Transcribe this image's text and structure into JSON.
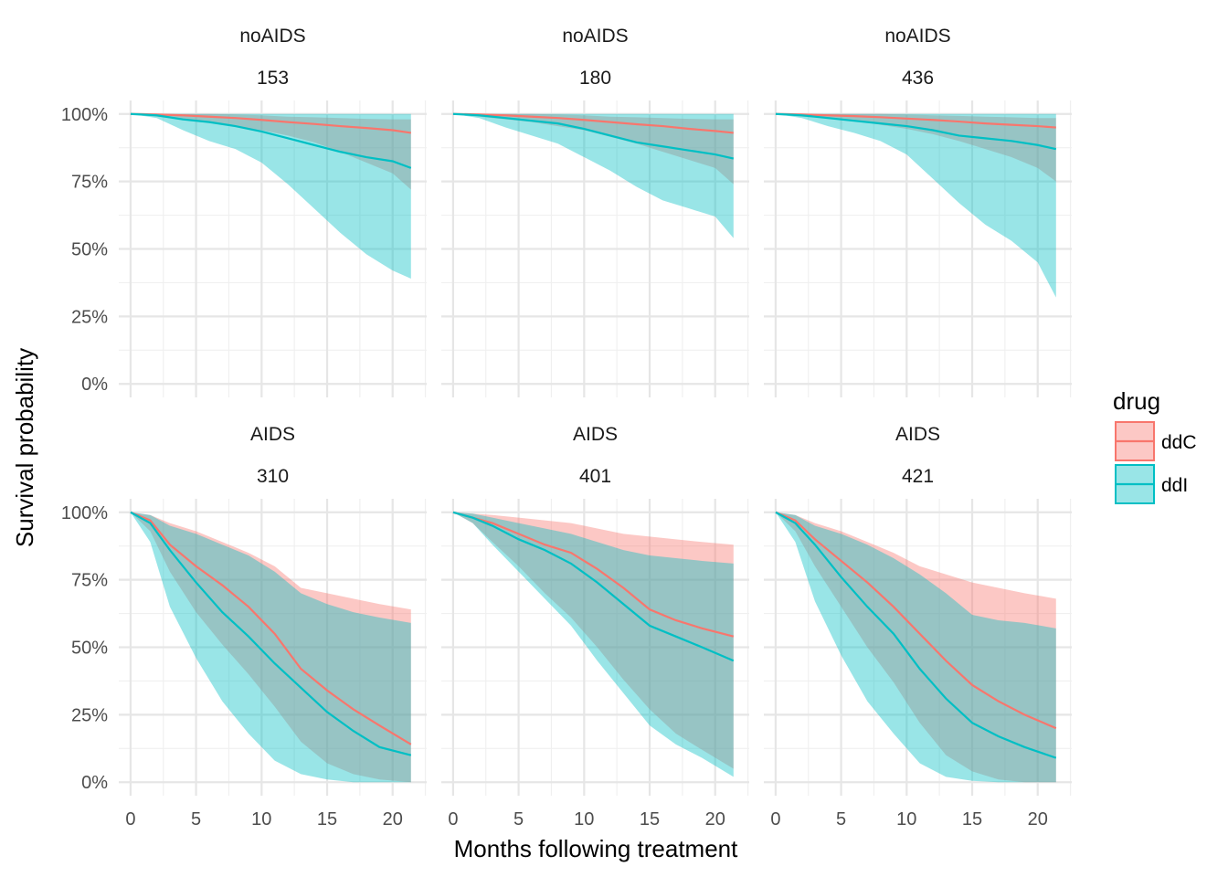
{
  "chart_data": {
    "type": "area",
    "xlabel": "Months following treatment",
    "ylabel": "Survival probability",
    "xlim": [
      -0.9,
      22.6
    ],
    "ylim": [
      -0.05,
      1.05
    ],
    "x_ticks": [
      0,
      5,
      10,
      15,
      20
    ],
    "x_tick_labels": [
      "0",
      "5",
      "10",
      "15",
      "20"
    ],
    "y_ticks": [
      0,
      0.25,
      0.5,
      0.75,
      1
    ],
    "y_tick_labels": [
      "0%",
      "25%",
      "50%",
      "75%",
      "100%"
    ],
    "grid": true,
    "legend": {
      "title": "drug",
      "placement": "right",
      "items": [
        {
          "label": "ddC",
          "line_color": "#F8766D",
          "fill_color": "#F8766D"
        },
        {
          "label": "ddI",
          "line_color": "#00BFC4",
          "fill_color": "#00BFC4"
        }
      ]
    },
    "colors": {
      "ddC": "#F8766D",
      "ddI": "#00BFC4"
    },
    "panels": [
      {
        "strip_top": "noAIDS",
        "strip_bottom": "153",
        "x": [
          0,
          2,
          4,
          6,
          8,
          10,
          12,
          14,
          16,
          18,
          20,
          21.4
        ],
        "series": [
          {
            "name": "ddC",
            "estimate": [
              1,
              0.998,
              0.995,
              0.99,
              0.985,
              0.978,
              0.97,
              0.963,
              0.955,
              0.948,
              0.94,
              0.93
            ],
            "lower": [
              1,
              0.99,
              0.98,
              0.97,
              0.955,
              0.94,
              0.92,
              0.895,
              0.86,
              0.82,
              0.78,
              0.72
            ],
            "upper": [
              1,
              1,
              1,
              1,
              0.998,
              0.995,
              0.99,
              0.988,
              0.985,
              0.982,
              0.98,
              0.98
            ]
          },
          {
            "name": "ddI",
            "estimate": [
              1,
              0.995,
              0.98,
              0.97,
              0.955,
              0.935,
              0.91,
              0.885,
              0.86,
              0.84,
              0.825,
              0.8
            ],
            "lower": [
              1,
              0.985,
              0.94,
              0.9,
              0.87,
              0.82,
              0.74,
              0.65,
              0.56,
              0.48,
              0.42,
              0.39
            ],
            "upper": [
              1,
              1,
              1,
              1,
              1,
              1,
              1,
              1,
              1,
              1,
              1,
              1
            ]
          }
        ]
      },
      {
        "strip_top": "noAIDS",
        "strip_bottom": "180",
        "x": [
          0,
          2,
          4,
          6,
          8,
          10,
          12,
          14,
          16,
          18,
          20,
          21.4
        ],
        "series": [
          {
            "name": "ddC",
            "estimate": [
              1,
              0.998,
              0.995,
              0.99,
              0.985,
              0.978,
              0.97,
              0.962,
              0.955,
              0.945,
              0.937,
              0.93
            ],
            "lower": [
              1,
              0.99,
              0.98,
              0.97,
              0.955,
              0.94,
              0.915,
              0.89,
              0.86,
              0.83,
              0.8,
              0.74
            ],
            "upper": [
              1,
              1,
              1,
              1,
              0.998,
              0.995,
              0.99,
              0.988,
              0.985,
              0.982,
              0.98,
              0.98
            ]
          },
          {
            "name": "ddI",
            "estimate": [
              1,
              0.995,
              0.985,
              0.975,
              0.965,
              0.945,
              0.92,
              0.895,
              0.88,
              0.865,
              0.85,
              0.835
            ],
            "lower": [
              1,
              0.985,
              0.95,
              0.92,
              0.89,
              0.84,
              0.79,
              0.73,
              0.68,
              0.65,
              0.62,
              0.54
            ],
            "upper": [
              1,
              1,
              1,
              1,
              1,
              1,
              1,
              1,
              1,
              1,
              1,
              1
            ]
          }
        ]
      },
      {
        "strip_top": "noAIDS",
        "strip_bottom": "436",
        "x": [
          0,
          2,
          4,
          6,
          8,
          10,
          12,
          14,
          16,
          18,
          20,
          21.4
        ],
        "series": [
          {
            "name": "ddC",
            "estimate": [
              1,
              0.998,
              0.995,
              0.992,
              0.988,
              0.983,
              0.978,
              0.972,
              0.965,
              0.96,
              0.955,
              0.95
            ],
            "lower": [
              1,
              0.99,
              0.985,
              0.975,
              0.96,
              0.945,
              0.925,
              0.9,
              0.87,
              0.84,
              0.8,
              0.75
            ],
            "upper": [
              1,
              1,
              1,
              1,
              1,
              0.998,
              0.995,
              0.993,
              0.99,
              0.988,
              0.985,
              0.985
            ]
          },
          {
            "name": "ddI",
            "estimate": [
              1,
              0.995,
              0.985,
              0.975,
              0.965,
              0.955,
              0.94,
              0.92,
              0.91,
              0.9,
              0.885,
              0.87
            ],
            "lower": [
              1,
              0.985,
              0.955,
              0.93,
              0.9,
              0.85,
              0.76,
              0.67,
              0.59,
              0.53,
              0.45,
              0.32
            ],
            "upper": [
              1,
              1,
              1,
              1,
              1,
              1,
              1,
              1,
              1,
              1,
              1,
              1
            ]
          }
        ]
      },
      {
        "strip_top": "AIDS",
        "strip_bottom": "310",
        "x": [
          0,
          1.5,
          3,
          5,
          7,
          9,
          11,
          13,
          15,
          17,
          19,
          21.4
        ],
        "series": [
          {
            "name": "ddC",
            "estimate": [
              1,
              0.97,
              0.88,
              0.8,
              0.73,
              0.65,
              0.55,
              0.42,
              0.34,
              0.27,
              0.21,
              0.14
            ],
            "lower": [
              1,
              0.93,
              0.78,
              0.63,
              0.51,
              0.4,
              0.28,
              0.15,
              0.07,
              0.03,
              0.01,
              0
            ],
            "upper": [
              1,
              0.99,
              0.96,
              0.93,
              0.89,
              0.85,
              0.8,
              0.72,
              0.7,
              0.68,
              0.66,
              0.64
            ]
          },
          {
            "name": "ddI",
            "estimate": [
              1,
              0.96,
              0.86,
              0.74,
              0.63,
              0.54,
              0.44,
              0.35,
              0.26,
              0.19,
              0.13,
              0.1
            ],
            "lower": [
              1,
              0.89,
              0.65,
              0.46,
              0.3,
              0.18,
              0.08,
              0.03,
              0.01,
              0,
              0,
              0
            ],
            "upper": [
              1,
              0.99,
              0.95,
              0.92,
              0.88,
              0.84,
              0.78,
              0.7,
              0.66,
              0.63,
              0.61,
              0.59
            ]
          }
        ]
      },
      {
        "strip_top": "AIDS",
        "strip_bottom": "401",
        "x": [
          0,
          1.5,
          3,
          5,
          7,
          9,
          11,
          13,
          15,
          17,
          19,
          21.4
        ],
        "series": [
          {
            "name": "ddC",
            "estimate": [
              1,
              0.98,
              0.96,
              0.92,
              0.88,
              0.85,
              0.79,
              0.72,
              0.64,
              0.6,
              0.57,
              0.54
            ],
            "lower": [
              1,
              0.96,
              0.89,
              0.8,
              0.7,
              0.61,
              0.5,
              0.38,
              0.27,
              0.18,
              0.12,
              0.05
            ],
            "upper": [
              1,
              0.995,
              0.99,
              0.98,
              0.97,
              0.96,
              0.94,
              0.92,
              0.91,
              0.9,
              0.89,
              0.88
            ]
          },
          {
            "name": "ddI",
            "estimate": [
              1,
              0.98,
              0.95,
              0.9,
              0.86,
              0.81,
              0.74,
              0.66,
              0.58,
              0.54,
              0.5,
              0.45
            ],
            "lower": [
              1,
              0.96,
              0.88,
              0.78,
              0.68,
              0.58,
              0.45,
              0.33,
              0.21,
              0.14,
              0.09,
              0.02
            ],
            "upper": [
              1,
              0.995,
              0.98,
              0.96,
              0.94,
              0.92,
              0.89,
              0.86,
              0.84,
              0.83,
              0.82,
              0.81
            ]
          }
        ]
      },
      {
        "strip_top": "AIDS",
        "strip_bottom": "421",
        "x": [
          0,
          1.5,
          3,
          5,
          7,
          9,
          11,
          13,
          15,
          17,
          19,
          21.4
        ],
        "series": [
          {
            "name": "ddC",
            "estimate": [
              1,
              0.97,
              0.9,
              0.82,
              0.74,
              0.65,
              0.55,
              0.45,
              0.36,
              0.3,
              0.25,
              0.2
            ],
            "lower": [
              1,
              0.93,
              0.8,
              0.65,
              0.5,
              0.37,
              0.22,
              0.1,
              0.04,
              0.01,
              0,
              0
            ],
            "upper": [
              1,
              0.99,
              0.96,
              0.93,
              0.89,
              0.85,
              0.8,
              0.77,
              0.74,
              0.72,
              0.7,
              0.68
            ]
          },
          {
            "name": "ddI",
            "estimate": [
              1,
              0.96,
              0.88,
              0.76,
              0.65,
              0.55,
              0.42,
              0.31,
              0.22,
              0.17,
              0.13,
              0.09
            ],
            "lower": [
              1,
              0.89,
              0.67,
              0.47,
              0.3,
              0.18,
              0.07,
              0.02,
              0.005,
              0,
              0,
              0
            ],
            "upper": [
              1,
              0.99,
              0.95,
              0.92,
              0.88,
              0.83,
              0.77,
              0.7,
              0.62,
              0.6,
              0.59,
              0.57
            ]
          }
        ]
      }
    ]
  }
}
